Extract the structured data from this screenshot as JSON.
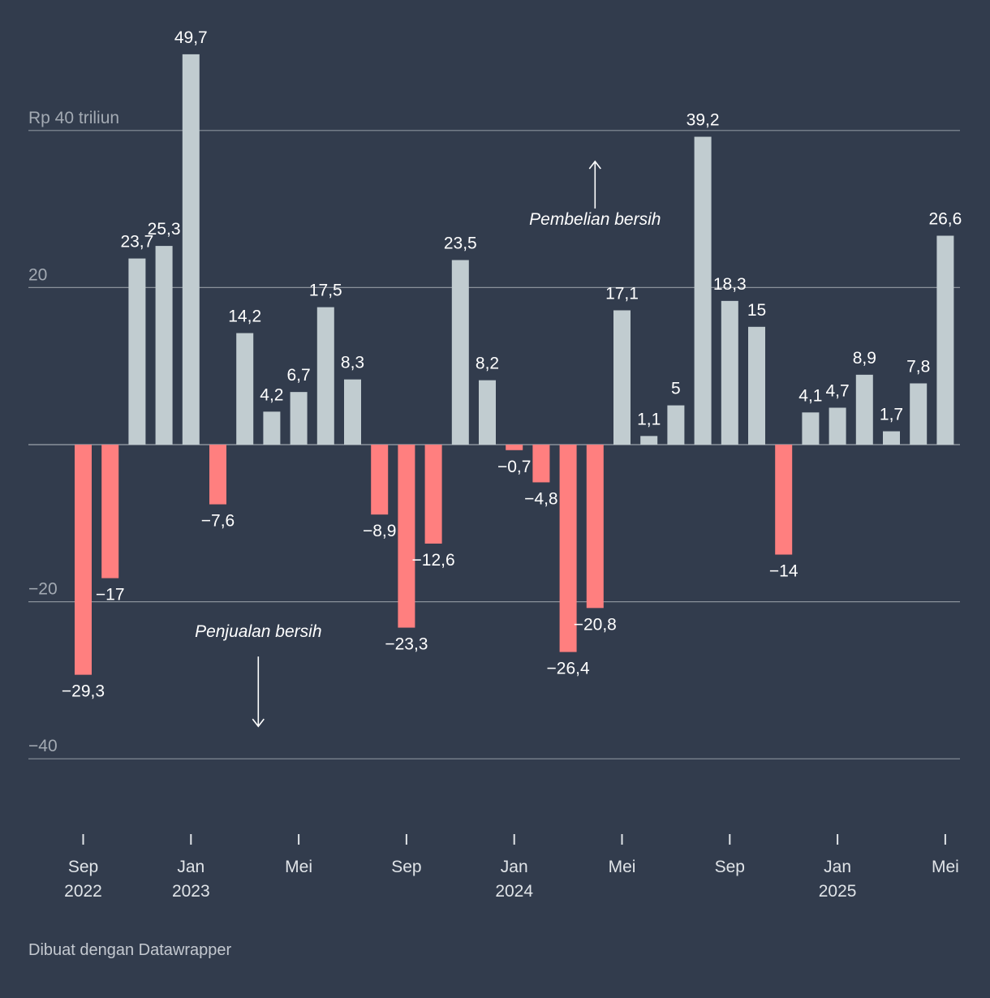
{
  "chart_data": {
    "type": "bar",
    "title": "",
    "xlabel": "",
    "ylabel": "",
    "unit_label": "Rp 40 triliun",
    "ylim": [
      -40,
      50
    ],
    "yticks": [
      {
        "value": 40,
        "label": "Rp 40 triliun"
      },
      {
        "value": 20,
        "label": "20"
      },
      {
        "value": 0,
        "label": ""
      },
      {
        "value": -20,
        "label": "−20"
      },
      {
        "value": -40,
        "label": "−40"
      }
    ],
    "bars": [
      {
        "value": -29.3,
        "label": "−29,3"
      },
      {
        "value": -17,
        "label": "−17"
      },
      {
        "value": 23.7,
        "label": "23,7"
      },
      {
        "value": 25.3,
        "label": "25,3"
      },
      {
        "value": 49.7,
        "label": "49,7"
      },
      {
        "value": -7.6,
        "label": "−7,6"
      },
      {
        "value": 14.2,
        "label": "14,2"
      },
      {
        "value": 4.2,
        "label": "4,2"
      },
      {
        "value": 6.7,
        "label": "6,7"
      },
      {
        "value": 17.5,
        "label": "17,5"
      },
      {
        "value": 8.3,
        "label": "8,3"
      },
      {
        "value": -8.9,
        "label": "−8,9"
      },
      {
        "value": -23.3,
        "label": "−23,3"
      },
      {
        "value": -12.6,
        "label": "−12,6"
      },
      {
        "value": 23.5,
        "label": "23,5"
      },
      {
        "value": 8.2,
        "label": "8,2"
      },
      {
        "value": -0.7,
        "label": "−0,7"
      },
      {
        "value": -4.8,
        "label": "−4,8"
      },
      {
        "value": -26.4,
        "label": "−26,4"
      },
      {
        "value": -20.8,
        "label": "−20,8"
      },
      {
        "value": 17.1,
        "label": "17,1"
      },
      {
        "value": 1.1,
        "label": "1,1"
      },
      {
        "value": 5,
        "label": "5"
      },
      {
        "value": 39.2,
        "label": "39,2"
      },
      {
        "value": 18.3,
        "label": "18,3"
      },
      {
        "value": 15,
        "label": "15"
      },
      {
        "value": -14,
        "label": "−14"
      },
      {
        "value": 4.1,
        "label": "4,1"
      },
      {
        "value": 4.7,
        "label": "4,7"
      },
      {
        "value": 8.9,
        "label": "8,9"
      },
      {
        "value": 1.7,
        "label": "1,7"
      },
      {
        "value": 7.8,
        "label": "7,8"
      },
      {
        "value": 26.6,
        "label": "26,6"
      }
    ],
    "xticks": [
      {
        "index": 0,
        "month": "Sep",
        "year": "2022"
      },
      {
        "index": 4,
        "month": "Jan",
        "year": "2023"
      },
      {
        "index": 8,
        "month": "Mei",
        "year": ""
      },
      {
        "index": 12,
        "month": "Sep",
        "year": ""
      },
      {
        "index": 16,
        "month": "Jan",
        "year": "2024"
      },
      {
        "index": 20,
        "month": "Mei",
        "year": ""
      },
      {
        "index": 24,
        "month": "Sep",
        "year": ""
      },
      {
        "index": 28,
        "month": "Jan",
        "year": "2025"
      },
      {
        "index": 32,
        "month": "Mei",
        "year": ""
      }
    ],
    "annotations": [
      {
        "text": "Pembelian bersih",
        "direction": "up",
        "value": 28,
        "bar_index": 19
      },
      {
        "text": "Penjualan bersih",
        "direction": "down",
        "value": -24.5,
        "bar_index": 6.5
      }
    ],
    "colors": {
      "positive": "#c1ccd0",
      "negative": "#ff7f7f",
      "background": "#323c4d",
      "grid": "#8a919b",
      "axis_text": "#a3aab3",
      "label_text": "#ffffff"
    }
  },
  "footer": {
    "credit": "Dibuat dengan Datawrapper"
  }
}
